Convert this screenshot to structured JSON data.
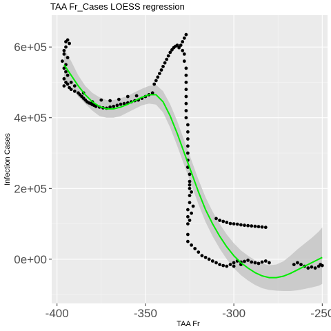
{
  "chart_data": {
    "type": "scatter",
    "title": "TAA Fr_Cases LOESS regression",
    "xlabel": "TAA Fr",
    "ylabel": "Infection Cases",
    "xlim": [
      -403,
      -247
    ],
    "ylim": [
      -125000,
      690000
    ],
    "x_ticks": [
      -400,
      -350,
      -300,
      -250
    ],
    "x_tick_labels": [
      "-400",
      "-350",
      "-300",
      "-250"
    ],
    "y_ticks": [
      0,
      200000,
      400000,
      600000
    ],
    "y_tick_labels": [
      "0e+00",
      "2e+05",
      "4e+05",
      "6e+05"
    ],
    "grid": true,
    "points": [
      [
        -396,
        590000
      ],
      [
        -395,
        615000
      ],
      [
        -394,
        620000
      ],
      [
        -393,
        610000
      ],
      [
        -395,
        600000
      ],
      [
        -396,
        580000
      ],
      [
        -394,
        570000
      ],
      [
        -397,
        560000
      ],
      [
        -395,
        550000
      ],
      [
        -396,
        540000
      ],
      [
        -395,
        530000
      ],
      [
        -394,
        520000
      ],
      [
        -396,
        510000
      ],
      [
        -395,
        500000
      ],
      [
        -394,
        495000
      ],
      [
        -396,
        490000
      ],
      [
        -393,
        485000
      ],
      [
        -392,
        480000
      ],
      [
        -390,
        475000
      ],
      [
        -388,
        470000
      ],
      [
        -387,
        465000
      ],
      [
        -386,
        460000
      ],
      [
        -385,
        455000
      ],
      [
        -384,
        450000
      ],
      [
        -383,
        445000
      ],
      [
        -382,
        442000
      ],
      [
        -381,
        440000
      ],
      [
        -380,
        437000
      ],
      [
        -379,
        435000
      ],
      [
        -378,
        432000
      ],
      [
        -376,
        430000
      ],
      [
        -374,
        428000
      ],
      [
        -372,
        427000
      ],
      [
        -370,
        430000
      ],
      [
        -368,
        432000
      ],
      [
        -366,
        435000
      ],
      [
        -364,
        438000
      ],
      [
        -362,
        440000
      ],
      [
        -360,
        442000
      ],
      [
        -358,
        445000
      ],
      [
        -356,
        448000
      ],
      [
        -354,
        450000
      ],
      [
        -352,
        455000
      ],
      [
        -350,
        460000
      ],
      [
        -348,
        465000
      ],
      [
        -346,
        470000
      ],
      [
        -375,
        450000
      ],
      [
        -370,
        448000
      ],
      [
        -365,
        452000
      ],
      [
        -360,
        460000
      ],
      [
        -355,
        462000
      ],
      [
        -380,
        445000
      ],
      [
        -385,
        470000
      ],
      [
        -390,
        490000
      ],
      [
        -392,
        500000
      ],
      [
        -345,
        495000
      ],
      [
        -344,
        505000
      ],
      [
        -343,
        515000
      ],
      [
        -342,
        525000
      ],
      [
        -341,
        535000
      ],
      [
        -340,
        545000
      ],
      [
        -339,
        555000
      ],
      [
        -338,
        565000
      ],
      [
        -337,
        575000
      ],
      [
        -336,
        585000
      ],
      [
        -335,
        592000
      ],
      [
        -334,
        598000
      ],
      [
        -333,
        602000
      ],
      [
        -332,
        605000
      ],
      [
        -331,
        598000
      ],
      [
        -330,
        605000
      ],
      [
        -329,
        615000
      ],
      [
        -328,
        625000
      ],
      [
        -327,
        635000
      ],
      [
        -329,
        590000
      ],
      [
        -328,
        580000
      ],
      [
        -328,
        560000
      ],
      [
        -327,
        540000
      ],
      [
        -327,
        520000
      ],
      [
        -327,
        500000
      ],
      [
        -327,
        480000
      ],
      [
        -327,
        460000
      ],
      [
        -327,
        440000
      ],
      [
        -327,
        420000
      ],
      [
        -327,
        400000
      ],
      [
        -326,
        380000
      ],
      [
        -326,
        360000
      ],
      [
        -326,
        340000
      ],
      [
        -326,
        320000
      ],
      [
        -326,
        300000
      ],
      [
        -326,
        280000
      ],
      [
        -326,
        260000
      ],
      [
        -325,
        240000
      ],
      [
        -325,
        220000
      ],
      [
        -325,
        200000
      ],
      [
        -325,
        180000
      ],
      [
        -325,
        160000
      ],
      [
        -326,
        140000
      ],
      [
        -326,
        120000
      ],
      [
        -326,
        100000
      ],
      [
        -325,
        110000
      ],
      [
        -324,
        130000
      ],
      [
        -323,
        150000
      ],
      [
        -324,
        190000
      ],
      [
        -325,
        210000
      ],
      [
        -326,
        70000
      ],
      [
        -326,
        50000
      ],
      [
        -324,
        40000
      ],
      [
        -322,
        30000
      ],
      [
        -320,
        20000
      ],
      [
        -318,
        10000
      ],
      [
        -316,
        5000
      ],
      [
        -314,
        0
      ],
      [
        -312,
        -5000
      ],
      [
        -310,
        -10000
      ],
      [
        -308,
        -15000
      ],
      [
        -306,
        -18000
      ],
      [
        -304,
        -20000
      ],
      [
        -302,
        -15000
      ],
      [
        -300,
        -10000
      ],
      [
        -298,
        -5000
      ],
      [
        -296,
        -8000
      ],
      [
        -294,
        -6000
      ],
      [
        -292,
        -3000
      ],
      [
        -290,
        -8000
      ],
      [
        -288,
        -10000
      ],
      [
        -286,
        -12000
      ],
      [
        -284,
        -8000
      ],
      [
        -282,
        -5000
      ],
      [
        -280,
        -10000
      ],
      [
        -310,
        115000
      ],
      [
        -308,
        110000
      ],
      [
        -306,
        107000
      ],
      [
        -304,
        104000
      ],
      [
        -302,
        101000
      ],
      [
        -300,
        100000
      ],
      [
        -298,
        99000
      ],
      [
        -296,
        97000
      ],
      [
        -294,
        96000
      ],
      [
        -292,
        95000
      ],
      [
        -290,
        94000
      ],
      [
        -288,
        93000
      ],
      [
        -286,
        92000
      ],
      [
        -284,
        91000
      ],
      [
        -282,
        90000
      ],
      [
        -300,
        -20000
      ],
      [
        -296,
        -15000
      ],
      [
        -262,
        -15000
      ],
      [
        -260,
        -20000
      ],
      [
        -258,
        -25000
      ],
      [
        -256,
        -22000
      ],
      [
        -254,
        -25000
      ],
      [
        -252,
        -20000
      ],
      [
        -251,
        -15000
      ],
      [
        -250,
        -18000
      ],
      [
        -264,
        -10000
      ],
      [
        -266,
        -15000
      ]
    ],
    "loess_fit": {
      "x": [
        -396,
        -392,
        -388,
        -384,
        -380,
        -376,
        -372,
        -368,
        -364,
        -360,
        -356,
        -352,
        -348,
        -344,
        -340,
        -336,
        -332,
        -328,
        -324,
        -320,
        -316,
        -312,
        -308,
        -304,
        -300,
        -296,
        -292,
        -288,
        -284,
        -280,
        -276,
        -272,
        -268,
        -264,
        -260,
        -256,
        -252,
        -250
      ],
      "y": [
        550000,
        520000,
        490000,
        465000,
        445000,
        432000,
        425000,
        425000,
        430000,
        438000,
        448000,
        458000,
        465000,
        465000,
        445000,
        405000,
        355000,
        300000,
        245000,
        190000,
        140000,
        100000,
        65000,
        35000,
        10000,
        -10000,
        -25000,
        -38000,
        -47000,
        -52000,
        -52000,
        -48000,
        -40000,
        -30000,
        -20000,
        -10000,
        0,
        5000
      ],
      "lower": [
        510000,
        490000,
        460000,
        440000,
        420000,
        405000,
        400000,
        400000,
        405000,
        415000,
        425000,
        435000,
        440000,
        437000,
        415000,
        372000,
        320000,
        265000,
        210000,
        155000,
        105000,
        65000,
        30000,
        0,
        -25000,
        -45000,
        -60000,
        -73000,
        -82000,
        -87000,
        -89000,
        -90000,
        -90000,
        -88000,
        -84000,
        -80000,
        -75000,
        -70000
      ],
      "upper": [
        595000,
        560000,
        520000,
        490000,
        470000,
        458000,
        450000,
        450000,
        455000,
        462000,
        472000,
        482000,
        490000,
        493000,
        475000,
        438000,
        390000,
        335000,
        280000,
        225000,
        175000,
        135000,
        100000,
        70000,
        45000,
        25000,
        10000,
        -3000,
        -12000,
        -17000,
        -15000,
        -6000,
        10000,
        28000,
        44000,
        60000,
        78000,
        90000
      ]
    }
  },
  "colors": {
    "panel_bg": "#ebebeb",
    "grid_major": "#ffffff",
    "grid_minor": "#f5f5f5",
    "points": "#000000",
    "fit_line": "#00ee00",
    "ribbon": "#bdbdbd"
  }
}
